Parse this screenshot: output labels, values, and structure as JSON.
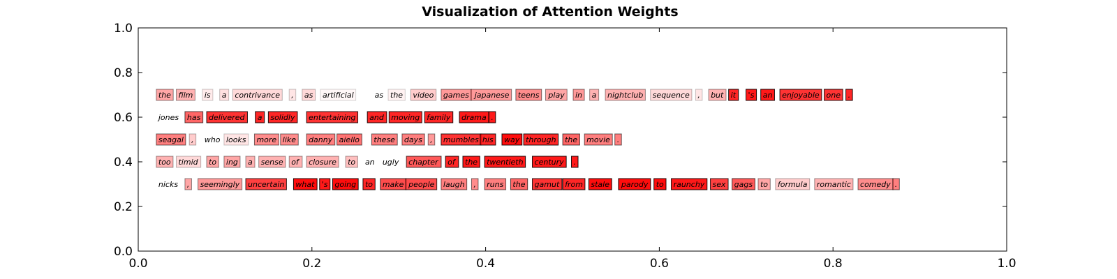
{
  "chart_data": {
    "type": "text-heatmap",
    "title": "Visualization of Attention Weights",
    "xlabel": "",
    "ylabel": "",
    "xlim": [
      0,
      1
    ],
    "ylim": [
      0,
      1
    ],
    "x_ticks": [
      "0.0",
      "0.2",
      "0.4",
      "0.6",
      "0.8",
      "1.0"
    ],
    "y_ticks": [
      "0.0",
      "0.2",
      "0.4",
      "0.6",
      "0.8",
      "1.0"
    ],
    "grid": false,
    "highlight_color": "#ff0000",
    "sentences": [
      {
        "y": 0.7,
        "words": [
          {
            "text": "the",
            "x": 0.02,
            "w": 0.35
          },
          {
            "text": "film",
            "x": 0.043,
            "w": 0.3
          },
          {
            "text": "is",
            "x": 0.073,
            "w": 0.08
          },
          {
            "text": "a",
            "x": 0.093,
            "w": 0.12
          },
          {
            "text": "contrivance",
            "x": 0.108,
            "w": 0.15
          },
          {
            "text": ",",
            "x": 0.173,
            "w": 0.1
          },
          {
            "text": "as",
            "x": 0.188,
            "w": 0.15
          },
          {
            "text": "artificial",
            "x": 0.209,
            "w": 0.03
          },
          {
            "text": "as",
            "x": 0.269,
            "w": 0.0
          },
          {
            "text": "the",
            "x": 0.287,
            "w": 0.05
          },
          {
            "text": "video",
            "x": 0.313,
            "w": 0.2
          },
          {
            "text": "games",
            "x": 0.348,
            "w": 0.4
          },
          {
            "text": "japanese",
            "x": 0.384,
            "w": 0.4
          },
          {
            "text": "teens",
            "x": 0.434,
            "w": 0.45
          },
          {
            "text": "play",
            "x": 0.469,
            "w": 0.35
          },
          {
            "text": "in",
            "x": 0.5,
            "w": 0.4
          },
          {
            "text": "a",
            "x": 0.519,
            "w": 0.3
          },
          {
            "text": "nightclub",
            "x": 0.537,
            "w": 0.3
          },
          {
            "text": "sequence",
            "x": 0.589,
            "w": 0.15
          },
          {
            "text": ",",
            "x": 0.641,
            "w": 0.1
          },
          {
            "text": "but",
            "x": 0.656,
            "w": 0.3
          },
          {
            "text": "it",
            "x": 0.679,
            "w": 0.85
          },
          {
            "text": "'s",
            "x": 0.699,
            "w": 0.9
          },
          {
            "text": "an",
            "x": 0.716,
            "w": 0.9
          },
          {
            "text": "enjoyable",
            "x": 0.738,
            "w": 0.8
          },
          {
            "text": "one",
            "x": 0.789,
            "w": 0.8
          },
          {
            "text": ".",
            "x": 0.814,
            "w": 0.85
          }
        ]
      },
      {
        "y": 0.6,
        "words": [
          {
            "text": "jones",
            "x": 0.02,
            "w": 0.0
          },
          {
            "text": "has",
            "x": 0.053,
            "w": 0.6
          },
          {
            "text": "delivered",
            "x": 0.078,
            "w": 0.8
          },
          {
            "text": "a",
            "x": 0.134,
            "w": 0.85
          },
          {
            "text": "solidly",
            "x": 0.149,
            "w": 0.85
          },
          {
            "text": "entertaining",
            "x": 0.193,
            "w": 0.8
          },
          {
            "text": "and",
            "x": 0.263,
            "w": 0.85
          },
          {
            "text": "moving",
            "x": 0.288,
            "w": 0.85
          },
          {
            "text": "family",
            "x": 0.329,
            "w": 0.85
          },
          {
            "text": "drama",
            "x": 0.369,
            "w": 0.9
          },
          {
            "text": ".",
            "x": 0.403,
            "w": 0.9
          }
        ]
      },
      {
        "y": 0.5,
        "words": [
          {
            "text": "seagal",
            "x": 0.02,
            "w": 0.5
          },
          {
            "text": ",",
            "x": 0.058,
            "w": 0.2
          },
          {
            "text": "who",
            "x": 0.073,
            "w": 0.0
          },
          {
            "text": "looks",
            "x": 0.098,
            "w": 0.1
          },
          {
            "text": "more",
            "x": 0.133,
            "w": 0.45
          },
          {
            "text": "like",
            "x": 0.163,
            "w": 0.45
          },
          {
            "text": "danny",
            "x": 0.193,
            "w": 0.5
          },
          {
            "text": "aiello",
            "x": 0.228,
            "w": 0.55
          },
          {
            "text": "these",
            "x": 0.268,
            "w": 0.5
          },
          {
            "text": "days",
            "x": 0.303,
            "w": 0.5
          },
          {
            "text": ",",
            "x": 0.333,
            "w": 0.4
          },
          {
            "text": "mumbles",
            "x": 0.348,
            "w": 0.8
          },
          {
            "text": "his",
            "x": 0.393,
            "w": 0.85
          },
          {
            "text": "way",
            "x": 0.418,
            "w": 0.95
          },
          {
            "text": "through",
            "x": 0.443,
            "w": 0.85
          },
          {
            "text": "the",
            "x": 0.488,
            "w": 0.6
          },
          {
            "text": "movie",
            "x": 0.513,
            "w": 0.5
          },
          {
            "text": ".",
            "x": 0.548,
            "w": 0.5
          }
        ]
      },
      {
        "y": 0.4,
        "words": [
          {
            "text": "too",
            "x": 0.02,
            "w": 0.3
          },
          {
            "text": "timid",
            "x": 0.043,
            "w": 0.15
          },
          {
            "text": "to",
            "x": 0.078,
            "w": 0.35
          },
          {
            "text": "ing",
            "x": 0.098,
            "w": 0.35
          },
          {
            "text": "a",
            "x": 0.123,
            "w": 0.3
          },
          {
            "text": "sense",
            "x": 0.138,
            "w": 0.3
          },
          {
            "text": "of",
            "x": 0.173,
            "w": 0.3
          },
          {
            "text": "closure",
            "x": 0.193,
            "w": 0.3
          },
          {
            "text": "to",
            "x": 0.238,
            "w": 0.25
          },
          {
            "text": "an",
            "x": 0.258,
            "w": 0.0
          },
          {
            "text": "ugly",
            "x": 0.278,
            "w": 0.0
          },
          {
            "text": "chapter",
            "x": 0.308,
            "w": 0.65
          },
          {
            "text": "of",
            "x": 0.353,
            "w": 0.85
          },
          {
            "text": "the",
            "x": 0.373,
            "w": 0.9
          },
          {
            "text": "twentieth",
            "x": 0.398,
            "w": 0.9
          },
          {
            "text": "century",
            "x": 0.453,
            "w": 0.9
          },
          {
            "text": ".",
            "x": 0.498,
            "w": 0.9
          }
        ]
      },
      {
        "y": 0.3,
        "words": [
          {
            "text": "nicks",
            "x": 0.02,
            "w": 0.0
          },
          {
            "text": ",",
            "x": 0.053,
            "w": 0.35
          },
          {
            "text": "seemingly",
            "x": 0.068,
            "w": 0.4
          },
          {
            "text": "uncertain",
            "x": 0.123,
            "w": 0.75
          },
          {
            "text": "what",
            "x": 0.178,
            "w": 0.95
          },
          {
            "text": "'s",
            "x": 0.208,
            "w": 0.9
          },
          {
            "text": "going",
            "x": 0.223,
            "w": 0.95
          },
          {
            "text": "to",
            "x": 0.258,
            "w": 0.85
          },
          {
            "text": "make",
            "x": 0.278,
            "w": 0.7
          },
          {
            "text": "people",
            "x": 0.308,
            "w": 0.7
          },
          {
            "text": "laugh",
            "x": 0.348,
            "w": 0.5
          },
          {
            "text": ",",
            "x": 0.383,
            "w": 0.45
          },
          {
            "text": "runs",
            "x": 0.398,
            "w": 0.5
          },
          {
            "text": "the",
            "x": 0.428,
            "w": 0.6
          },
          {
            "text": "gamut",
            "x": 0.453,
            "w": 0.8
          },
          {
            "text": "from",
            "x": 0.488,
            "w": 0.85
          },
          {
            "text": "stale",
            "x": 0.518,
            "w": 0.95
          },
          {
            "text": "parody",
            "x": 0.553,
            "w": 0.95
          },
          {
            "text": "to",
            "x": 0.593,
            "w": 0.95
          },
          {
            "text": "raunchy",
            "x": 0.613,
            "w": 0.9
          },
          {
            "text": "sex",
            "x": 0.658,
            "w": 0.75
          },
          {
            "text": "gags",
            "x": 0.683,
            "w": 0.65
          },
          {
            "text": "to",
            "x": 0.713,
            "w": 0.35
          },
          {
            "text": "formula",
            "x": 0.733,
            "w": 0.2
          },
          {
            "text": "romantic",
            "x": 0.778,
            "w": 0.3
          },
          {
            "text": "comedy",
            "x": 0.828,
            "w": 0.45
          },
          {
            "text": ".",
            "x": 0.868,
            "w": 0.5
          }
        ]
      }
    ]
  }
}
